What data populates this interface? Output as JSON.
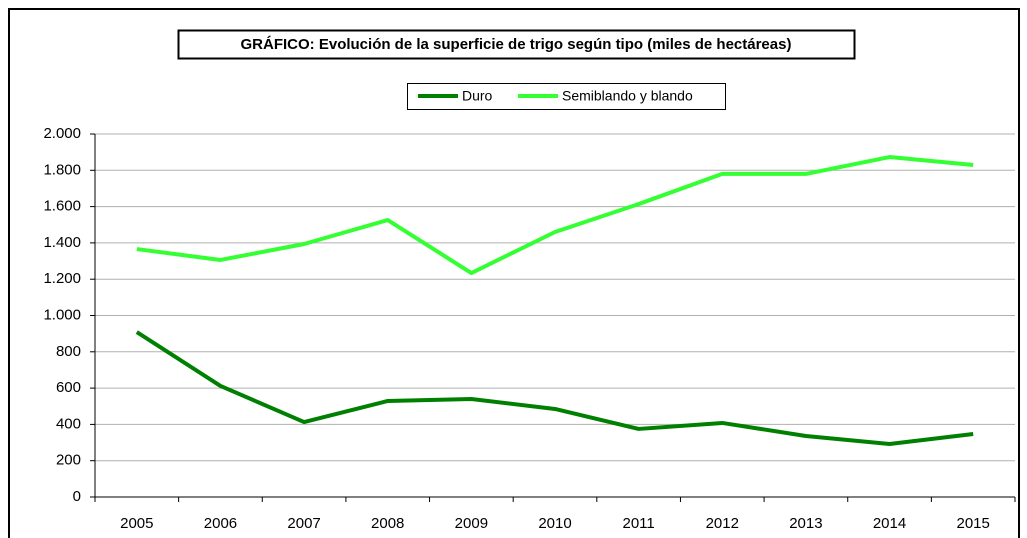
{
  "chart_data": {
    "type": "line",
    "title": "GRÁFICO: Evolución de la superficie de trigo según tipo (miles de hectáreas)",
    "categories": [
      "2005",
      "2006",
      "2007",
      "2008",
      "2009",
      "2010",
      "2011",
      "2012",
      "2013",
      "2014",
      "2015"
    ],
    "series": [
      {
        "name": "Duro",
        "color": "#008000",
        "values": [
          909,
          612,
          413,
          529,
          540,
          485,
          375,
          408,
          336,
          292,
          347
        ]
      },
      {
        "name": "Semiblando y blando",
        "color": "#33ff33",
        "values": [
          1366,
          1306,
          1394,
          1526,
          1234,
          1460,
          1614,
          1780,
          1780,
          1873,
          1829
        ]
      }
    ],
    "ylim": [
      0,
      2000
    ],
    "yticks": [
      0,
      200,
      400,
      600,
      800,
      {
        "value": 1000,
        "label": "1.000"
      },
      {
        "value": 1200,
        "label": "1.200"
      },
      {
        "value": 1400,
        "label": "1.400"
      },
      {
        "value": 1600,
        "label": "1.600"
      },
      {
        "value": 1800,
        "label": "1.800"
      },
      {
        "value": 2000,
        "label": "2.000"
      }
    ],
    "grid": true,
    "legend": "top"
  }
}
